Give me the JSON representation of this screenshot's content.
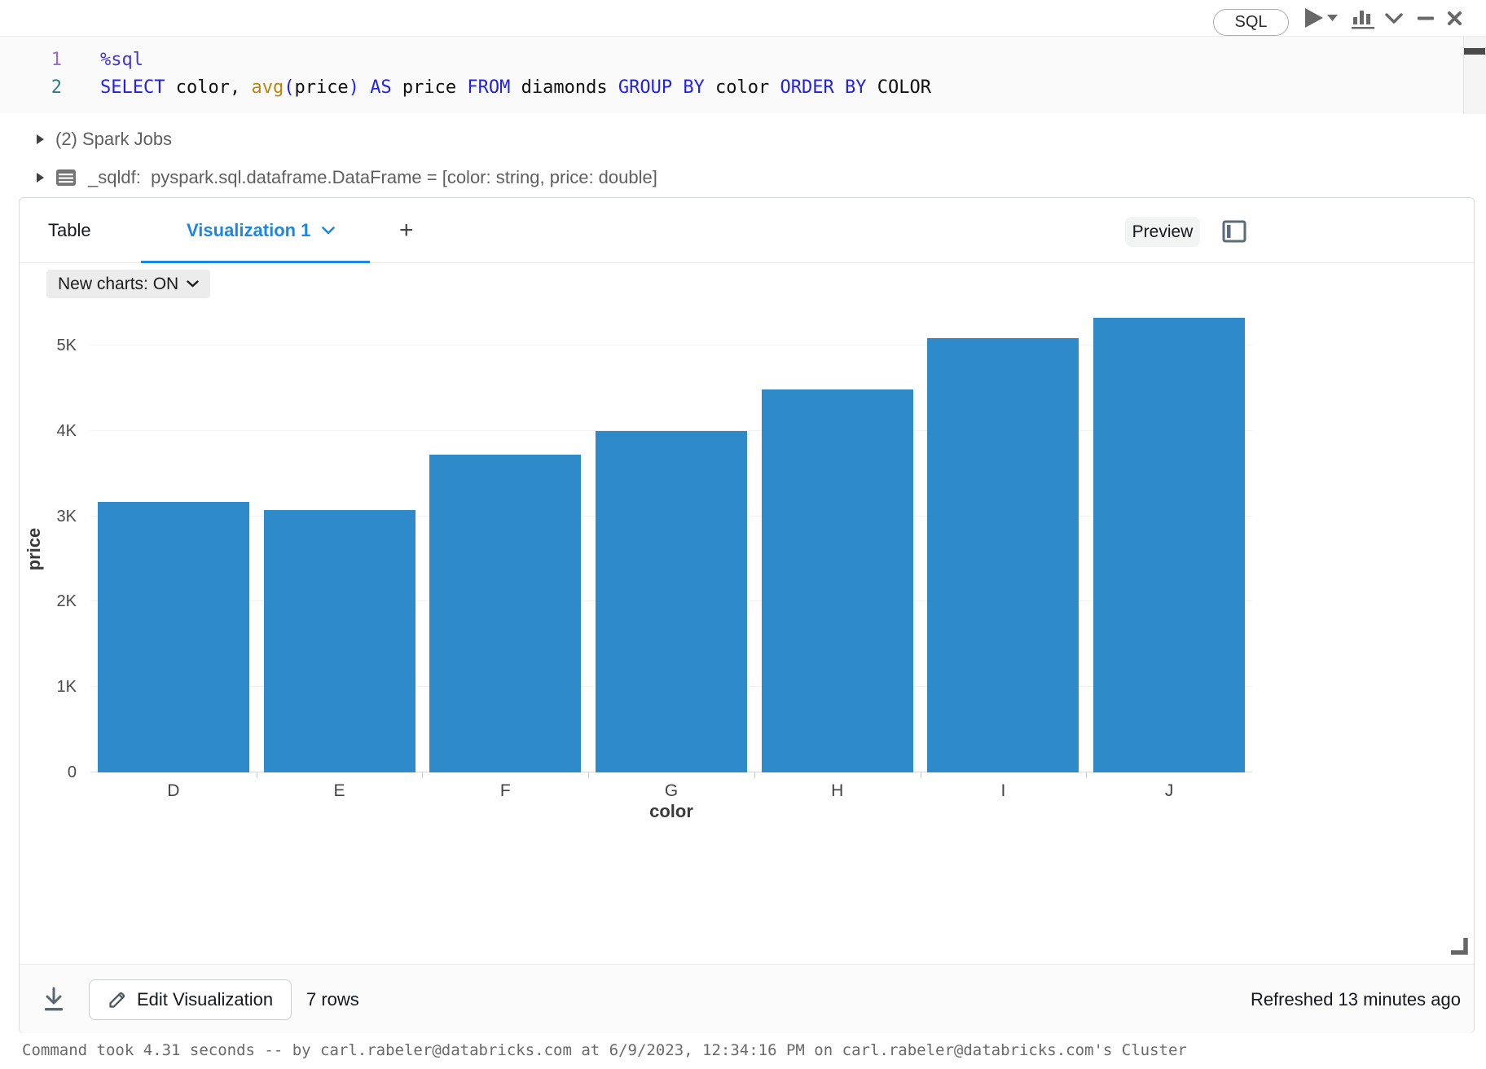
{
  "cell_toolbar": {
    "lang_badge": "SQL"
  },
  "code": {
    "token_colors": {
      "magic": "#4338ca",
      "kw": "#2222e6",
      "fn": "#b8860b",
      "paren": "#2222e6",
      "plain": "#111111"
    },
    "lines": [
      {
        "num": "1",
        "num_color": "#9b6bc9",
        "tokens": [
          {
            "t": "%sql",
            "c": "magic"
          }
        ]
      },
      {
        "num": "2",
        "num_color": "#2e7d8e",
        "tokens": [
          {
            "t": "SELECT",
            "c": "kw"
          },
          {
            "t": " color, ",
            "c": "plain"
          },
          {
            "t": "avg",
            "c": "fn"
          },
          {
            "t": "(",
            "c": "paren"
          },
          {
            "t": "price",
            "c": "plain"
          },
          {
            "t": ")",
            "c": "paren"
          },
          {
            "t": " ",
            "c": "plain"
          },
          {
            "t": "AS",
            "c": "kw"
          },
          {
            "t": " price ",
            "c": "plain"
          },
          {
            "t": "FROM",
            "c": "kw"
          },
          {
            "t": " diamonds ",
            "c": "plain"
          },
          {
            "t": "GROUP BY",
            "c": "kw"
          },
          {
            "t": " color ",
            "c": "plain"
          },
          {
            "t": "ORDER BY",
            "c": "kw"
          },
          {
            "t": " COLOR",
            "c": "plain"
          }
        ]
      }
    ]
  },
  "collapsibles": {
    "spark_jobs": "(2) Spark Jobs",
    "sqldf_label": "_sqldf:",
    "sqldf_value": "pyspark.sql.dataframe.DataFrame = [color: string, price: double]"
  },
  "results_panel": {
    "tabs": [
      {
        "label": "Table"
      },
      {
        "label": "Visualization 1"
      }
    ],
    "add_tab_label": "+",
    "preview_button": "Preview",
    "new_charts_toggle": "New charts: ON",
    "footer": {
      "edit_button": "Edit Visualization",
      "row_count": "7 rows",
      "refreshed": "Refreshed 13 minutes ago"
    }
  },
  "chart_data": {
    "type": "bar",
    "title": "",
    "categories": [
      "D",
      "E",
      "F",
      "G",
      "H",
      "I",
      "J"
    ],
    "values": [
      3170,
      3077,
      3725,
      3999,
      4487,
      5092,
      5324
    ],
    "xlabel": "color",
    "ylabel": "price",
    "ylim": [
      0,
      5460
    ],
    "yticks": [
      {
        "v": 0,
        "label": "0"
      },
      {
        "v": 1000,
        "label": "1K"
      },
      {
        "v": 2000,
        "label": "2K"
      },
      {
        "v": 3000,
        "label": "3K"
      },
      {
        "v": 4000,
        "label": "4K"
      },
      {
        "v": 5000,
        "label": "5K"
      }
    ],
    "grid": true,
    "legend": "none",
    "bar_color": "#2f8ac9"
  },
  "status_bar": {
    "command_summary": "Command took 4.31 seconds -- by carl.rabeler@databricks.com at 6/9/2023, 12:34:16 PM on carl.rabeler@databricks.com's Cluster"
  },
  "colors": {
    "accent_blue": "#1b87e5",
    "bar_blue": "#2f8ac9"
  }
}
